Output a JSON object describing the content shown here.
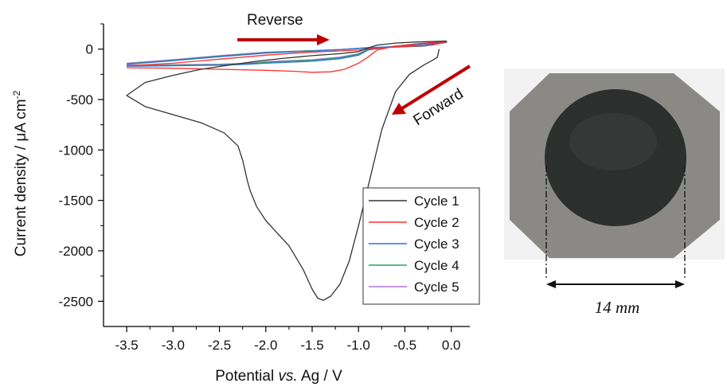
{
  "chart_data": {
    "type": "line",
    "xlabel": {
      "prefix": "Potential ",
      "italic": "vs.",
      "suffix": " Ag / V"
    },
    "ylabel": {
      "prefix": "Current density / ",
      "mu": "μ",
      "suffix": "A cm",
      "sup": "-2"
    },
    "xlim": [
      -3.75,
      0.2
    ],
    "ylim": [
      -2750,
      250
    ],
    "xticks": [
      -3.5,
      -3.0,
      -2.5,
      -2.0,
      -1.5,
      -1.0,
      -0.5,
      0.0
    ],
    "xtick_labels": [
      "-3.5",
      "-3.0",
      "-2.5",
      "-2.0",
      "-1.5",
      "-1.0",
      "-0.5",
      "0.0"
    ],
    "yticks": [
      0,
      -500,
      -1000,
      -1500,
      -2000,
      -2500
    ],
    "ytick_labels": [
      "0",
      "-500",
      "-1000",
      "-1500",
      "-2000",
      "-2500"
    ],
    "legend_position": "bottom-right",
    "series": [
      {
        "name": "Cycle 1",
        "color": "#333333",
        "x": [
          -0.13,
          -0.15,
          -0.2,
          -0.3,
          -0.45,
          -0.6,
          -0.75,
          -0.88,
          -1.0,
          -1.1,
          -1.2,
          -1.3,
          -1.38,
          -1.44,
          -1.5,
          -1.6,
          -1.75,
          -1.9,
          -2.0,
          -2.1,
          -2.17,
          -2.2,
          -2.25,
          -2.3,
          -2.45,
          -2.7,
          -3.0,
          -3.3,
          -3.5,
          -3.3,
          -3.0,
          -2.7,
          -2.4,
          -2.1,
          -1.8,
          -1.5,
          -1.2,
          -1.0,
          -0.9,
          -0.8,
          -0.6,
          -0.4,
          -0.2,
          -0.05
        ],
        "y": [
          0,
          -80,
          -110,
          -160,
          -250,
          -420,
          -800,
          -1300,
          -1750,
          -2100,
          -2330,
          -2450,
          -2490,
          -2470,
          -2380,
          -2180,
          -1950,
          -1800,
          -1700,
          -1560,
          -1400,
          -1300,
          -1100,
          -960,
          -830,
          -730,
          -650,
          -570,
          -460,
          -330,
          -260,
          -200,
          -160,
          -120,
          -90,
          -65,
          -45,
          -25,
          10,
          40,
          60,
          70,
          75,
          80
        ]
      },
      {
        "name": "Cycle 2",
        "color": "#ff3030",
        "x": [
          -3.5,
          -3.0,
          -2.5,
          -2.0,
          -1.7,
          -1.5,
          -1.3,
          -1.15,
          -1.0,
          -0.9,
          -0.8,
          -0.6,
          -0.4,
          -0.2,
          -0.05,
          -0.2,
          -0.5,
          -0.8,
          -1.0,
          -1.5,
          -2.0,
          -2.5,
          -3.0,
          -3.5
        ],
        "y": [
          -185,
          -190,
          -200,
          -210,
          -220,
          -230,
          -225,
          -200,
          -140,
          -80,
          -10,
          30,
          50,
          65,
          75,
          40,
          25,
          10,
          -10,
          -30,
          -60,
          -100,
          -140,
          -165
        ]
      },
      {
        "name": "Cycle 3",
        "color": "#3070d0",
        "x": [
          -3.5,
          -3.0,
          -2.5,
          -2.2,
          -2.0,
          -1.5,
          -1.2,
          -1.0,
          -0.9,
          -0.6,
          -0.3,
          -0.05,
          -0.3,
          -0.6,
          -0.9,
          -1.2,
          -1.5,
          -2.0,
          -2.5,
          -3.0,
          -3.5
        ],
        "y": [
          -170,
          -165,
          -160,
          -150,
          -140,
          -120,
          -95,
          -60,
          -10,
          30,
          50,
          70,
          35,
          25,
          15,
          -5,
          -20,
          -40,
          -75,
          -115,
          -150
        ]
      },
      {
        "name": "Cycle 4",
        "color": "#2ca060",
        "x": [
          -3.5,
          -3.0,
          -2.5,
          -2.2,
          -2.0,
          -1.5,
          -1.2,
          -1.0,
          -0.9,
          -0.6,
          -0.3,
          -0.05,
          -0.3,
          -0.6,
          -0.9,
          -1.2,
          -1.5,
          -2.0,
          -2.5,
          -3.0,
          -3.5
        ],
        "y": [
          -165,
          -160,
          -155,
          -145,
          -130,
          -110,
          -85,
          -50,
          -5,
          30,
          50,
          68,
          30,
          22,
          12,
          -5,
          -15,
          -35,
          -70,
          -110,
          -145
        ]
      },
      {
        "name": "Cycle 5",
        "color": "#b070e0",
        "x": [
          -3.5,
          -3.0,
          -2.5,
          -2.2,
          -2.0,
          -1.5,
          -1.2,
          -1.0,
          -0.9,
          -0.6,
          -0.3,
          -0.05,
          -0.3,
          -0.6,
          -0.9,
          -1.2,
          -1.5,
          -2.0,
          -2.5,
          -3.0,
          -3.5
        ],
        "y": [
          -160,
          -155,
          -150,
          -140,
          -125,
          -105,
          -80,
          -45,
          0,
          30,
          50,
          65,
          28,
          20,
          10,
          -5,
          -15,
          -30,
          -65,
          -105,
          -140
        ]
      }
    ],
    "annotations": [
      {
        "text": "Reverse",
        "arrow_color": "#c00000"
      },
      {
        "text": "Forward",
        "arrow_color": "#c00000"
      }
    ]
  },
  "photo": {
    "scale_label": "14 mm",
    "colors": {
      "background": "#f2f2f2",
      "plate": "#8a8985",
      "disc": "#2b302e",
      "bar": "#111111"
    }
  }
}
